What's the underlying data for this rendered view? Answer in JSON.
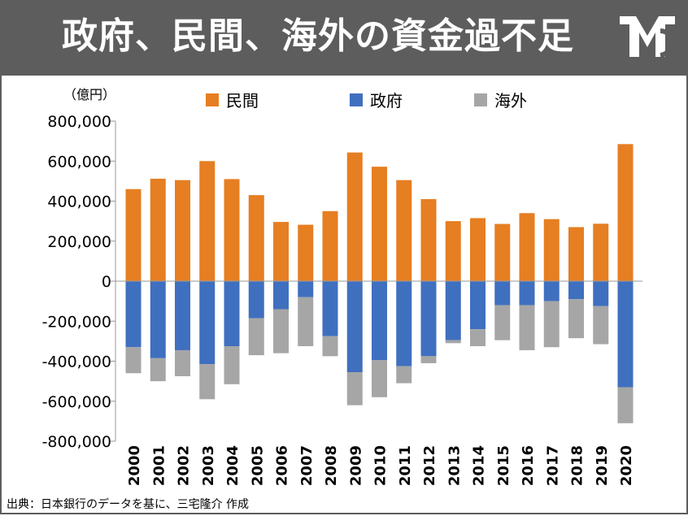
{
  "header": {
    "title": "政府、民間、海外の資金過不足"
  },
  "footer": {
    "source": "出典：日本銀行のデータを基に、三宅隆介 作成"
  },
  "chart_data": {
    "type": "bar",
    "stacked": true,
    "unit_label": "（億円）",
    "ylim": [
      -800000,
      800000
    ],
    "y_ticks": [
      "800,000",
      "600,000",
      "400,000",
      "200,000",
      "0",
      "-200,000",
      "-400,000",
      "-600,000",
      "-800,000"
    ],
    "y_tick_values": [
      800000,
      600000,
      400000,
      200000,
      0,
      -200000,
      -400000,
      -600000,
      -800000
    ],
    "categories": [
      "2000",
      "2001",
      "2002",
      "2003",
      "2004",
      "2005",
      "2006",
      "2007",
      "2008",
      "2009",
      "2010",
      "2011",
      "2012",
      "2013",
      "2014",
      "2015",
      "2016",
      "2017",
      "2018",
      "2019",
      "2020"
    ],
    "legend_position": "top",
    "series": [
      {
        "name": "民間",
        "color": "#e67e22",
        "values": [
          460000,
          512000,
          505000,
          600000,
          510000,
          430000,
          296000,
          282000,
          350000,
          643000,
          572000,
          505000,
          410000,
          300000,
          315000,
          286000,
          340000,
          310000,
          270000,
          287000,
          685000
        ]
      },
      {
        "name": "政府",
        "color": "#3f6fbf",
        "values": [
          -330000,
          -385000,
          -345000,
          -415000,
          -325000,
          -185000,
          -140000,
          -80000,
          -275000,
          -455000,
          -395000,
          -425000,
          -375000,
          -295000,
          -240000,
          -120000,
          -120000,
          -100000,
          -90000,
          -125000,
          -530000
        ]
      },
      {
        "name": "海外",
        "color": "#a6a6a6",
        "values": [
          -130000,
          -115000,
          -130000,
          -175000,
          -190000,
          -185000,
          -220000,
          -245000,
          -100000,
          -165000,
          -185000,
          -85000,
          -35000,
          -15000,
          -85000,
          -175000,
          -225000,
          -230000,
          -195000,
          -190000,
          -180000
        ]
      }
    ]
  }
}
